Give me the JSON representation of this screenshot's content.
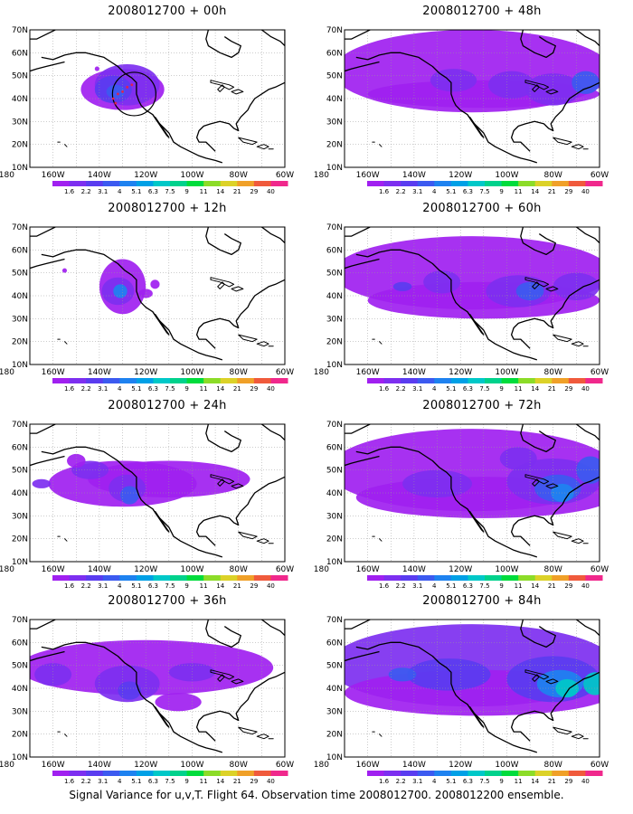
{
  "panels": [
    {
      "title": "2008012700 + 00h",
      "lead": 0
    },
    {
      "title": "2008012700 + 12h",
      "lead": 12
    },
    {
      "title": "2008012700 + 24h",
      "lead": 24
    },
    {
      "title": "2008012700 + 36h",
      "lead": 36
    },
    {
      "title": "2008012700 + 48h",
      "lead": 48
    },
    {
      "title": "2008012700 + 60h",
      "lead": 60
    },
    {
      "title": "2008012700 + 72h",
      "lead": 72
    },
    {
      "title": "2008012700 + 84h",
      "lead": 84
    }
  ],
  "axes": {
    "lat_labels": [
      "10N",
      "20N",
      "30N",
      "40N",
      "50N",
      "60N",
      "70N"
    ],
    "lon_labels": [
      "180",
      "160W",
      "140W",
      "120W",
      "100W",
      "80W",
      "60W"
    ]
  },
  "colorbar": {
    "labels": [
      "1.6",
      "2.2",
      "3.1",
      "4",
      "5.1",
      "6.3",
      "7.5",
      "9",
      "11",
      "14",
      "21",
      "29",
      "40"
    ],
    "colors": [
      "#a020f0",
      "#7d2ff0",
      "#5a3cf0",
      "#3c5af0",
      "#1e82f0",
      "#00a0e6",
      "#00c8c8",
      "#00d28c",
      "#00dc3c",
      "#8cdc28",
      "#dcd228",
      "#f0a028",
      "#f05a3c",
      "#f0288c"
    ]
  },
  "caption": "Signal Variance for u,v,T. Flight 64. Observation time 2008012700. 2008012200 ensemble."
}
